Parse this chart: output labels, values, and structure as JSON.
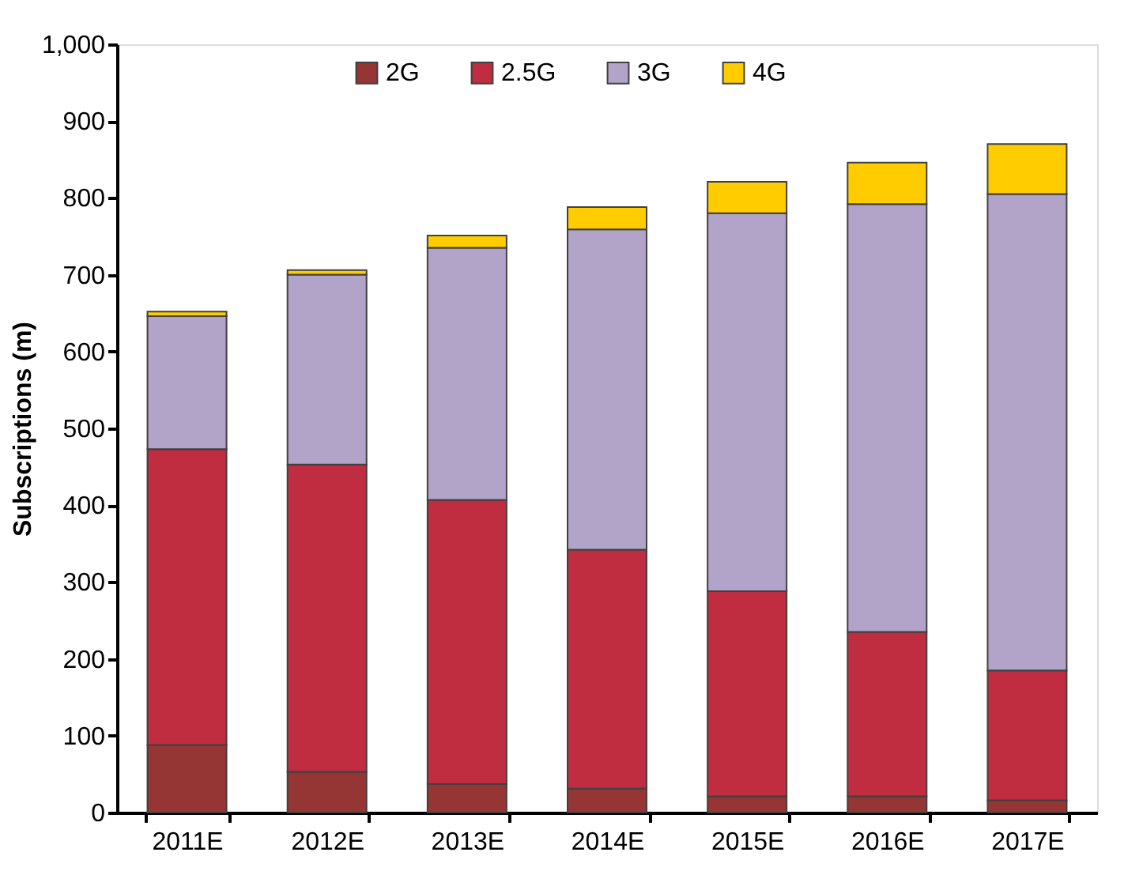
{
  "chart_data": {
    "type": "bar",
    "stacked": true,
    "ylabel": "Subscriptions (m)",
    "categories": [
      "2011E",
      "2012E",
      "2013E",
      "2014E",
      "2015E",
      "2016E",
      "2017E"
    ],
    "series": [
      {
        "name": "2G",
        "color": "#963634",
        "values": [
          88,
          53,
          37,
          31,
          21,
          21,
          16
        ]
      },
      {
        "name": "2.5G",
        "color": "#c02d40",
        "values": [
          385,
          400,
          370,
          311,
          267,
          214,
          169
        ]
      },
      {
        "name": "3G",
        "color": "#b2a3c8",
        "values": [
          173,
          247,
          328,
          417,
          492,
          557,
          620
        ]
      },
      {
        "name": "4G",
        "color": "#ffcc00",
        "values": [
          6,
          6,
          16,
          29,
          41,
          54,
          65
        ]
      }
    ],
    "ylim": [
      0,
      1000
    ],
    "yticks": [
      0,
      100,
      200,
      300,
      400,
      500,
      600,
      700,
      800,
      900,
      {
        "value": 1000,
        "label": "1,000"
      }
    ],
    "grid": false,
    "legend": "top"
  }
}
